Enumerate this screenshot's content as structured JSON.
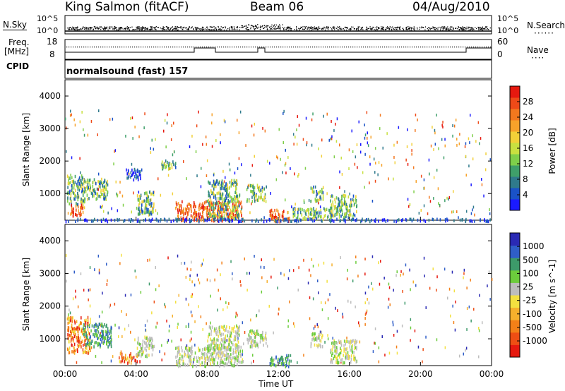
{
  "header": {
    "station": "King Salmon (fitACF)",
    "beam": "Beam 06",
    "date": "04/Aug/2010"
  },
  "summary_panels": {
    "nsky_label": "N.Sky",
    "nsky_ticks": [
      "10^5",
      "10^0"
    ],
    "nsearch_label": "N.Search",
    "nsearch_ticks": [
      "10^5",
      "10^0"
    ],
    "freq_label_1": "Freq.",
    "freq_label_2": "[MHz]",
    "freq_ticks": [
      "18",
      "8"
    ],
    "nave_label": "Nave",
    "nave_ticks": [
      "60",
      "0"
    ],
    "cpid_label": "CPID",
    "cpid_value": "normalsound (fast) 157"
  },
  "x_axis": {
    "title": "Time UT",
    "ticks": [
      "00:00",
      "04:00",
      "08:00",
      "12:00",
      "16:00",
      "20:00",
      "00:00"
    ]
  },
  "chart_data": [
    {
      "type": "heatmap",
      "name": "power",
      "ylabel": "Slant Range [km]",
      "yticks": [
        1000,
        2000,
        3000,
        4000
      ],
      "ylim": [
        180,
        4500
      ],
      "xlim": [
        0,
        24
      ],
      "colorbar": {
        "label": "Power [dB]",
        "ticks": [
          "4",
          "8",
          "12",
          "16",
          "20",
          "24",
          "28"
        ],
        "colors": [
          "#1a1aff",
          "#1a52c8",
          "#2f7a8c",
          "#3f9f6a",
          "#7fcf4a",
          "#c8e040",
          "#f2d038",
          "#f7a22a",
          "#f3781e",
          "#ee4a18",
          "#e6190f"
        ]
      },
      "regions": [
        {
          "t": [
            0.1,
            1.1
          ],
          "r": [
            700,
            1600
          ],
          "level": "mid"
        },
        {
          "t": [
            0.2,
            1.0
          ],
          "r": [
            350,
            700
          ],
          "level": "high"
        },
        {
          "t": [
            1.1,
            2.4
          ],
          "r": [
            850,
            1500
          ],
          "level": "mid"
        },
        {
          "t": [
            3.4,
            4.3
          ],
          "r": [
            1450,
            1800
          ],
          "level": "low"
        },
        {
          "t": [
            4.0,
            5.0
          ],
          "r": [
            400,
            1100
          ],
          "level": "mid"
        },
        {
          "t": [
            5.4,
            6.2
          ],
          "r": [
            1800,
            2050
          ],
          "level": "mid"
        },
        {
          "t": [
            6.2,
            10.0
          ],
          "r": [
            200,
            800
          ],
          "level": "high"
        },
        {
          "t": [
            8.0,
            9.8
          ],
          "r": [
            250,
            1450
          ],
          "level": "mid"
        },
        {
          "t": [
            10.2,
            11.3
          ],
          "r": [
            800,
            1300
          ],
          "level": "mid"
        },
        {
          "t": [
            11.5,
            12.6
          ],
          "r": [
            180,
            550
          ],
          "level": "high"
        },
        {
          "t": [
            12.7,
            15.0
          ],
          "r": [
            250,
            600
          ],
          "level": "mid"
        },
        {
          "t": [
            13.8,
            14.5
          ],
          "r": [
            800,
            1250
          ],
          "level": "mid"
        },
        {
          "t": [
            14.9,
            16.4
          ],
          "r": [
            300,
            1000
          ],
          "level": "mid"
        },
        {
          "t": [
            0.0,
            24.0
          ],
          "r": [
            180,
            260
          ],
          "level": "low"
        }
      ]
    },
    {
      "type": "heatmap",
      "name": "velocity",
      "ylabel": "Slant Range [km]",
      "yticks": [
        1000,
        2000,
        3000,
        4000
      ],
      "ylim": [
        180,
        4500
      ],
      "xlim": [
        0,
        24
      ],
      "colorbar": {
        "label": "Velocity [m s^-1]",
        "ticks": [
          "1000",
          "500",
          "100",
          "25",
          "-25",
          "-100",
          "-500",
          "-1000"
        ],
        "colors": [
          "#2a2ab4",
          "#2f5ec8",
          "#3d9a6a",
          "#6ccc3c",
          "#bdbdbd",
          "#f3e040",
          "#f6b02c",
          "#f38018",
          "#ee4e14",
          "#e6190f"
        ]
      },
      "regions": [
        {
          "t": [
            0.1,
            1.4
          ],
          "r": [
            600,
            1700
          ],
          "level": "neg"
        },
        {
          "t": [
            1.0,
            2.6
          ],
          "r": [
            800,
            1500
          ],
          "level": "pos"
        },
        {
          "t": [
            3.0,
            4.2
          ],
          "r": [
            300,
            600
          ],
          "level": "neg"
        },
        {
          "t": [
            4.0,
            5.0
          ],
          "r": [
            500,
            1100
          ],
          "level": "zero"
        },
        {
          "t": [
            6.2,
            10.0
          ],
          "r": [
            200,
            800
          ],
          "level": "zero"
        },
        {
          "t": [
            8.0,
            9.8
          ],
          "r": [
            700,
            1450
          ],
          "level": "zero"
        },
        {
          "t": [
            10.2,
            11.3
          ],
          "r": [
            800,
            1300
          ],
          "level": "zero"
        },
        {
          "t": [
            11.5,
            12.6
          ],
          "r": [
            180,
            550
          ],
          "level": "pos"
        },
        {
          "t": [
            13.8,
            14.5
          ],
          "r": [
            800,
            1250
          ],
          "level": "zero"
        },
        {
          "t": [
            14.9,
            16.4
          ],
          "r": [
            300,
            1000
          ],
          "level": "zero"
        }
      ]
    }
  ]
}
